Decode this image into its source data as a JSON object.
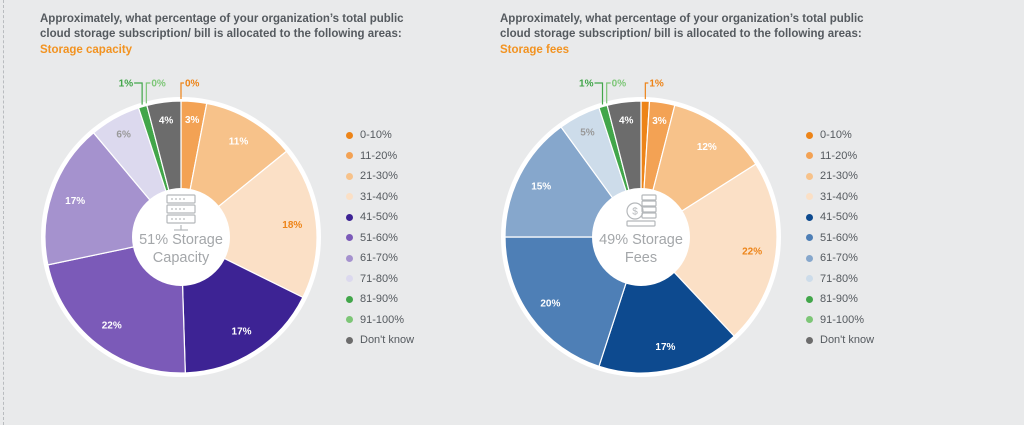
{
  "chart_data": [
    {
      "type": "pie",
      "title": "Approximately, what percentage of your organization’s total public cloud storage subscription/ bill is allocated to the following areas:",
      "subtitle": "Storage capacity",
      "center_label_line1": "51% Storage",
      "center_label_line2": "Capacity",
      "center_icon": "server-stack-icon",
      "categories": [
        "0-10%",
        "11-20%",
        "21-30%",
        "31-40%",
        "41-50%",
        "51-60%",
        "61-70%",
        "71-80%",
        "81-90%",
        "91-100%",
        "Don't know"
      ],
      "values": [
        0,
        3,
        11,
        18,
        17,
        22,
        17,
        6,
        1,
        0,
        4
      ],
      "value_labels": [
        "0%",
        "3%",
        "11%",
        "18%",
        "17%",
        "22%",
        "17%",
        "6%",
        "1%",
        "0%",
        "4%"
      ],
      "colors": [
        "#ed8418",
        "#f3a254",
        "#f7c28a",
        "#fbe0c6",
        "#3d2394",
        "#7b5ab8",
        "#a592ce",
        "#dcd9ee",
        "#42a64a",
        "#7dc677",
        "#6c6c6c"
      ],
      "label_colors": [
        "#ed8418",
        "#ffffff",
        "#ffffff",
        "#ed8418",
        "#ffffff",
        "#ffffff",
        "#ffffff",
        "#999999",
        "#42a64a",
        "#7dc677",
        "#ffffff"
      ],
      "legend_position": "right"
    },
    {
      "type": "pie",
      "title": "Approximately, what percentage of your organization’s total public cloud storage subscription/ bill is allocated to the following areas:",
      "subtitle": "Storage fees",
      "center_label_line1": "49% Storage",
      "center_label_line2": "Fees",
      "center_icon": "coins-dollar-icon",
      "categories": [
        "0-10%",
        "11-20%",
        "21-30%",
        "31-40%",
        "41-50%",
        "51-60%",
        "61-70%",
        "71-80%",
        "81-90%",
        "91-100%",
        "Don't know"
      ],
      "values": [
        1,
        3,
        12,
        22,
        17,
        20,
        15,
        5,
        1,
        0,
        4
      ],
      "value_labels": [
        "1%",
        "3%",
        "12%",
        "22%",
        "17%",
        "20%",
        "15%",
        "5%",
        "1%",
        "0%",
        "4%"
      ],
      "colors": [
        "#ed8418",
        "#f3a254",
        "#f7c28a",
        "#fbe0c6",
        "#0d4a8f",
        "#4e7fb6",
        "#86a7cc",
        "#cddcea",
        "#42a64a",
        "#7dc677",
        "#6c6c6c"
      ],
      "label_colors": [
        "#ed8418",
        "#ffffff",
        "#ffffff",
        "#ed8418",
        "#ffffff",
        "#ffffff",
        "#ffffff",
        "#999999",
        "#42a64a",
        "#7dc677",
        "#ffffff"
      ],
      "legend_position": "right"
    }
  ]
}
